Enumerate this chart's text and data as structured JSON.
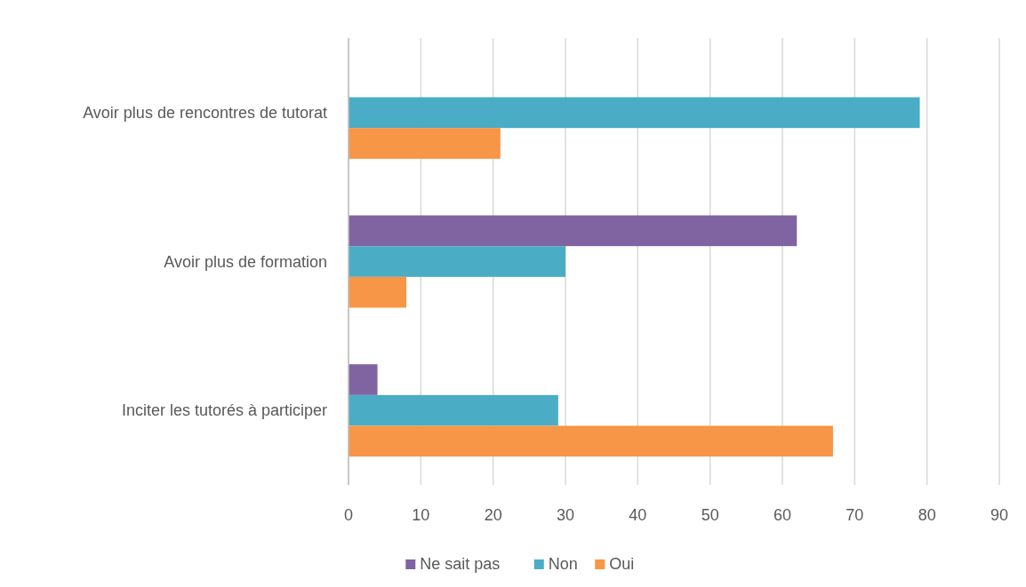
{
  "chart_data": {
    "type": "bar",
    "orientation": "horizontal",
    "categories": [
      "Avoir plus de rencontres de tutorat",
      "Avoir plus de formation",
      "Inciter les tutorés à participer"
    ],
    "series": [
      {
        "name": "Ne sait pas",
        "color": "#8064a2",
        "values": [
          null,
          62,
          4
        ]
      },
      {
        "name": "Non",
        "color": "#4bacc6",
        "values": [
          79,
          30,
          29
        ]
      },
      {
        "name": "Oui",
        "color": "#f79646",
        "values": [
          21,
          8,
          67
        ]
      }
    ],
    "xlim": [
      0,
      90
    ],
    "xticks": [
      0,
      10,
      20,
      30,
      40,
      50,
      60,
      70,
      80,
      90
    ],
    "grid": "x",
    "legend": "bottom"
  }
}
